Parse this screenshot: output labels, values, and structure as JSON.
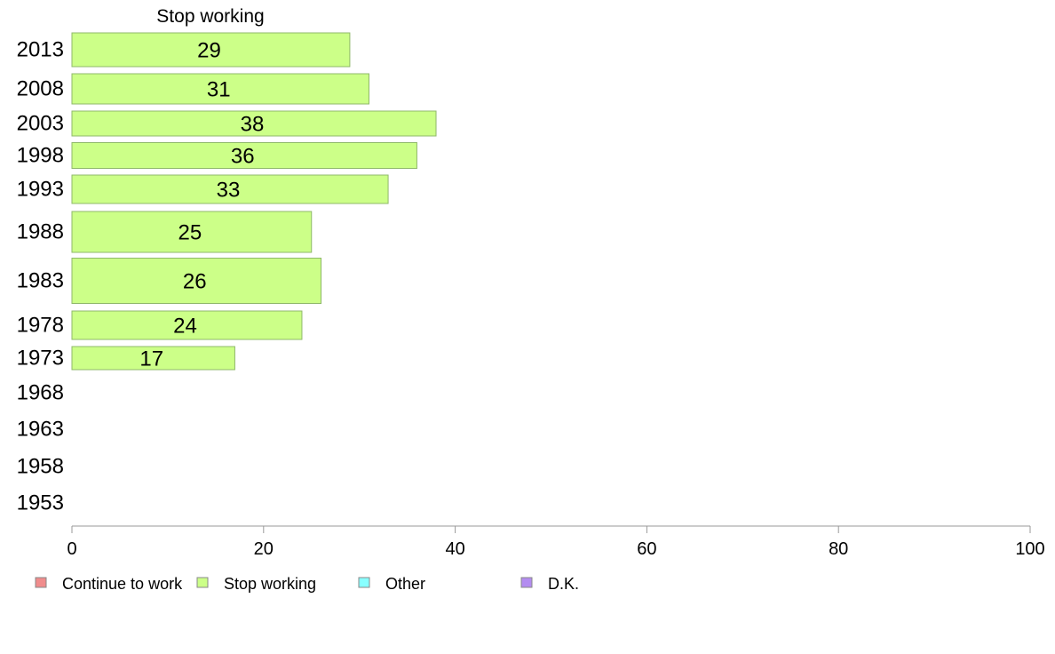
{
  "chart_data": {
    "type": "bar",
    "orientation": "horizontal",
    "categories": [
      "2013",
      "2008",
      "2003",
      "1998",
      "1993",
      "1988",
      "1983",
      "1978",
      "1973",
      "1968",
      "1963",
      "1958",
      "1953"
    ],
    "series": [
      {
        "name": "Stop working",
        "color": "#ccff88",
        "values": [
          29,
          31,
          38,
          36,
          33,
          25,
          26,
          24,
          17,
          null,
          null,
          null,
          null
        ]
      }
    ],
    "xlim": [
      0,
      100
    ],
    "xticks": [
      0,
      20,
      40,
      60,
      80,
      100
    ],
    "grid": false,
    "legend_position": "bottom-left",
    "legend": [
      {
        "label": "Continue to work",
        "color": "#f08c8c"
      },
      {
        "label": "Stop working",
        "color": "#ccff88"
      },
      {
        "label": "Other",
        "color": "#88ffff"
      },
      {
        "label": "D.K.",
        "color": "#b38cf0"
      }
    ]
  }
}
